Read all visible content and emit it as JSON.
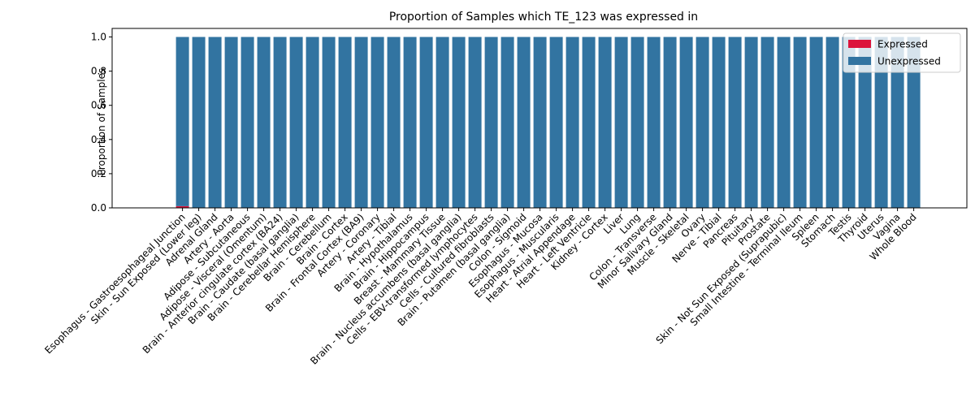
{
  "chart_data": {
    "type": "bar",
    "stacked": true,
    "title": "Proportion of Samples which TE_123 was expressed in",
    "xlabel": "",
    "ylabel": "Proportion of Samples",
    "ylim": [
      0,
      1.05
    ],
    "yticks": [
      "0.0",
      "0.2",
      "0.4",
      "0.6",
      "0.8",
      "1.0"
    ],
    "ytick_values": [
      0,
      0.2,
      0.4,
      0.6,
      0.8,
      1.0
    ],
    "grid": false,
    "legend_position": "top-right",
    "categories": [
      "Esophagus - Gastroesophageal Junction",
      "Skin - Sun Exposed (Lower leg)",
      "Adrenal Gland",
      "Artery - Aorta",
      "Adipose - Subcutaneous",
      "Adipose - Visceral (Omentum)",
      "Brain - Anterior cingulate cortex (BA24)",
      "Brain - Caudate (basal ganglia)",
      "Brain - Cerebellar Hemisphere",
      "Brain - Cerebellum",
      "Brain - Cortex",
      "Brain - Frontal Cortex (BA9)",
      "Artery - Coronary",
      "Artery - Tibial",
      "Brain - Hypothalamus",
      "Brain - Hippocampus",
      "Breast - Mammary Tissue",
      "Brain - Nucleus accumbens (basal ganglia)",
      "Cells - EBV-transformed lymphocytes",
      "Cells - Cultured fibroblasts",
      "Brain - Putamen (basal ganglia)",
      "Colon - Sigmoid",
      "Esophagus - Mucosa",
      "Esophagus - Muscularis",
      "Heart - Atrial Appendage",
      "Heart - Left Ventricle",
      "Kidney - Cortex",
      "Liver",
      "Lung",
      "Colon - Transverse",
      "Minor Salivary Gland",
      "Muscle - Skeletal",
      "Ovary",
      "Nerve - Tibial",
      "Pancreas",
      "Pituitary",
      "Prostate",
      "Skin - Not Sun Exposed (Suprapubic)",
      "Small Intestine - Terminal Ileum",
      "Spleen",
      "Stomach",
      "Testis",
      "Thyroid",
      "Uterus",
      "Vagina",
      "Whole Blood"
    ],
    "series": [
      {
        "name": "Expressed",
        "color": "#dc143c",
        "values": [
          0.01,
          0,
          0,
          0,
          0,
          0,
          0,
          0,
          0,
          0,
          0,
          0,
          0,
          0,
          0,
          0,
          0,
          0,
          0,
          0,
          0,
          0,
          0,
          0,
          0,
          0,
          0,
          0,
          0,
          0,
          0,
          0,
          0,
          0,
          0,
          0,
          0,
          0,
          0,
          0,
          0,
          0,
          0,
          0,
          0,
          0
        ]
      },
      {
        "name": "Unexpressed",
        "color": "#3274a1",
        "values": [
          0.99,
          1,
          1,
          1,
          1,
          1,
          1,
          1,
          1,
          1,
          1,
          1,
          1,
          1,
          1,
          1,
          1,
          1,
          1,
          1,
          1,
          1,
          1,
          1,
          1,
          1,
          1,
          1,
          1,
          1,
          1,
          1,
          1,
          1,
          1,
          1,
          1,
          1,
          1,
          1,
          1,
          1,
          1,
          1,
          1,
          1
        ]
      }
    ]
  }
}
